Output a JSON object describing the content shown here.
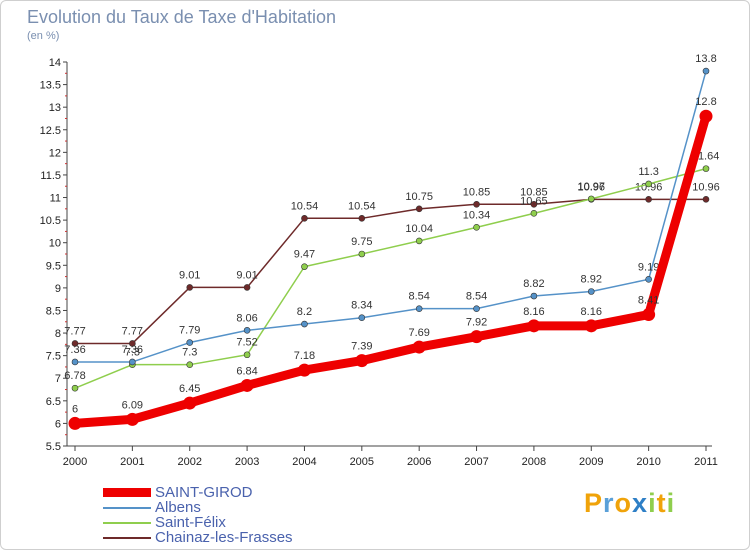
{
  "chart_data": {
    "type": "line",
    "title": "Evolution du Taux de Taxe d'Habitation",
    "subtitle": "(en %)",
    "xlabel": "",
    "ylabel": "",
    "categories": [
      "2000",
      "2001",
      "2002",
      "2003",
      "2004",
      "2005",
      "2006",
      "2007",
      "2008",
      "2009",
      "2010",
      "2011"
    ],
    "ylim": [
      5.5,
      14
    ],
    "yticks": [
      "5.5",
      "6",
      "6.5",
      "7",
      "7.5",
      "8",
      "8.5",
      "9",
      "9.5",
      "10",
      "10.5",
      "11",
      "11.5",
      "12",
      "12.5",
      "13",
      "13.5",
      "14"
    ],
    "grid": false,
    "legend_position": "bottom-left",
    "series": [
      {
        "name": "Chainaz-les-Frasses",
        "color": "#6e2a2a",
        "weight": "thin",
        "values": [
          7.77,
          7.77,
          9.01,
          9.01,
          10.54,
          10.54,
          10.75,
          10.85,
          10.85,
          10.96,
          10.96,
          10.96
        ],
        "labels": [
          "7.77",
          "7.77",
          "9.01",
          "9.01",
          "10.54",
          "10.54",
          "10.75",
          "10.85",
          "10.85",
          "10.96",
          "10.96",
          "10.96"
        ]
      },
      {
        "name": "Saint-Félix",
        "color": "#8fce4d",
        "weight": "thin",
        "values": [
          6.78,
          7.3,
          7.3,
          7.52,
          9.47,
          9.75,
          10.04,
          10.34,
          10.65,
          10.97,
          11.3,
          11.64
        ],
        "labels": [
          "6.78",
          "7.3",
          "7.3",
          "7.52",
          "9.47",
          "9.75",
          "10.04",
          "10.34",
          "10.65",
          "10.97",
          "11.3",
          "11.64"
        ]
      },
      {
        "name": "Albens",
        "color": "#5592c8",
        "weight": "thin",
        "values": [
          7.36,
          7.36,
          7.79,
          8.06,
          8.2,
          8.34,
          8.54,
          8.54,
          8.82,
          8.92,
          9.19,
          13.8
        ],
        "labels": [
          "7.36",
          "7.36",
          "7.79",
          "8.06",
          "8.2",
          "8.34",
          "8.54",
          "8.54",
          "8.82",
          "8.92",
          "9.19",
          "13.8"
        ]
      },
      {
        "name": "SAINT-GIROD",
        "color": "#ee0000",
        "weight": "thick",
        "values": [
          6,
          6.09,
          6.45,
          6.84,
          7.18,
          7.39,
          7.69,
          7.92,
          8.16,
          8.16,
          8.41,
          12.8
        ],
        "labels": [
          "6",
          "6.09",
          "6.45",
          "6.84",
          "7.18",
          "7.39",
          "7.69",
          "7.92",
          "8.16",
          "8.16",
          "8.41",
          "12.8"
        ]
      }
    ],
    "legend": [
      "SAINT-GIROD",
      "Albens",
      "Saint-Félix",
      "Chainaz-les-Frasses"
    ]
  },
  "brand": {
    "letters": [
      "P",
      "r",
      "o",
      "x",
      "i",
      "t",
      "i"
    ],
    "colors": [
      "#f0a30a",
      "#5aa0d8",
      "#f0a30a",
      "#2e7fc6",
      "#8fce4d",
      "#f0a30a",
      "#8fce4d"
    ]
  }
}
